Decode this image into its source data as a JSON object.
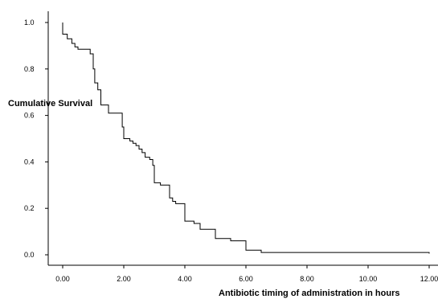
{
  "chart_data": {
    "type": "line",
    "step": true,
    "xlabel": "Antibiotic timing of administration in hours",
    "ylabel": "Cumulative Survival",
    "xlim": [
      0,
      12
    ],
    "ylim": [
      0,
      1
    ],
    "x_ticks": [
      "0.00",
      "2.00",
      "4.00",
      "6.00",
      "8.00",
      "10.00",
      "12.00"
    ],
    "y_ticks": [
      "0.0",
      "0.2",
      "0.4",
      "0.6",
      "0.8",
      "1.0"
    ],
    "grid": false,
    "line_color": "#000000",
    "series": [
      {
        "points": [
          [
            0.0,
            1.0
          ],
          [
            0.0,
            0.95
          ],
          [
            0.15,
            0.93
          ],
          [
            0.3,
            0.91
          ],
          [
            0.4,
            0.895
          ],
          [
            0.5,
            0.885
          ],
          [
            0.9,
            0.865
          ],
          [
            1.0,
            0.8
          ],
          [
            1.05,
            0.74
          ],
          [
            1.15,
            0.71
          ],
          [
            1.25,
            0.645
          ],
          [
            1.5,
            0.61
          ],
          [
            1.9,
            0.61
          ],
          [
            1.95,
            0.55
          ],
          [
            2.0,
            0.5
          ],
          [
            2.2,
            0.49
          ],
          [
            2.3,
            0.48
          ],
          [
            2.4,
            0.47
          ],
          [
            2.5,
            0.455
          ],
          [
            2.6,
            0.44
          ],
          [
            2.7,
            0.42
          ],
          [
            2.85,
            0.41
          ],
          [
            2.95,
            0.385
          ],
          [
            3.0,
            0.31
          ],
          [
            3.2,
            0.3
          ],
          [
            3.5,
            0.245
          ],
          [
            3.6,
            0.23
          ],
          [
            3.7,
            0.22
          ],
          [
            4.0,
            0.145
          ],
          [
            4.3,
            0.135
          ],
          [
            4.5,
            0.11
          ],
          [
            5.0,
            0.07
          ],
          [
            5.5,
            0.06
          ],
          [
            6.0,
            0.02
          ],
          [
            6.5,
            0.01
          ],
          [
            12.0,
            0.005
          ]
        ],
        "end_x": 12.0
      }
    ]
  }
}
